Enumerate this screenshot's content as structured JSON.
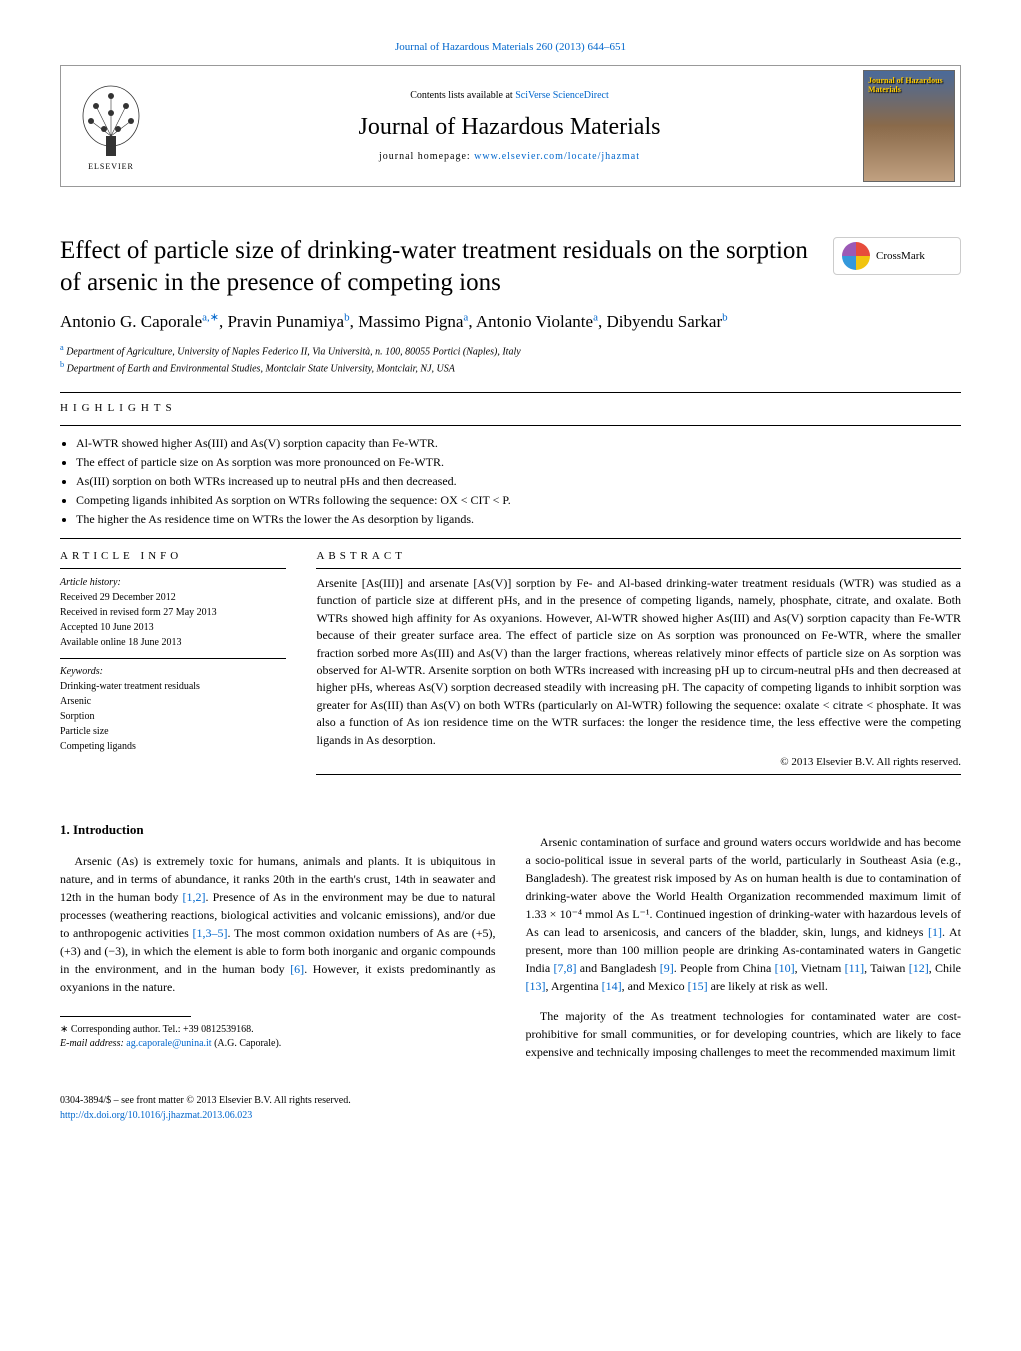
{
  "journal_ref": "Journal of Hazardous Materials 260 (2013) 644–651",
  "header": {
    "contents_prefix": "Contents lists available at ",
    "contents_link": "SciVerse ScienceDirect",
    "journal_name": "Journal of Hazardous Materials",
    "homepage_prefix": "journal homepage: ",
    "homepage_link": "www.elsevier.com/locate/jhazmat",
    "publisher": "ELSEVIER",
    "cover_text": "Journal of Hazardous Materials"
  },
  "crossmark": "CrossMark",
  "title": "Effect of particle size of drinking-water treatment residuals on the sorption of arsenic in the presence of competing ions",
  "authors_html": "Antonio G. Caporale<sup>a,∗</sup>, Pravin Punamiya<sup>b</sup>, Massimo Pigna<sup>a</sup>, Antonio Violante<sup>a</sup>, Dibyendu Sarkar<sup>b</sup>",
  "affiliations": [
    {
      "sup": "a",
      "text": "Department of Agriculture, University of Naples Federico II, Via Università, n. 100, 80055 Portici (Naples), Italy"
    },
    {
      "sup": "b",
      "text": "Department of Earth and Environmental Studies, Montclair State University, Montclair, NJ, USA"
    }
  ],
  "highlights_heading": "HIGHLIGHTS",
  "highlights": [
    "Al-WTR showed higher As(III) and As(V) sorption capacity than Fe-WTR.",
    "The effect of particle size on As sorption was more pronounced on Fe-WTR.",
    "As(III) sorption on both WTRs increased up to neutral pHs and then decreased.",
    "Competing ligands inhibited As sorption on WTRs following the sequence: OX < CIT < P.",
    "The higher the As residence time on WTRs the lower the As desorption by ligands."
  ],
  "article_info": {
    "heading": "ARTICLE INFO",
    "history_label": "Article history:",
    "dates": [
      "Received 29 December 2012",
      "Received in revised form 27 May 2013",
      "Accepted 10 June 2013",
      "Available online 18 June 2013"
    ],
    "keywords_label": "Keywords:",
    "keywords": [
      "Drinking-water treatment residuals",
      "Arsenic",
      "Sorption",
      "Particle size",
      "Competing ligands"
    ]
  },
  "abstract": {
    "heading": "ABSTRACT",
    "text": "Arsenite [As(III)] and arsenate [As(V)] sorption by Fe- and Al-based drinking-water treatment residuals (WTR) was studied as a function of particle size at different pHs, and in the presence of competing ligands, namely, phosphate, citrate, and oxalate. Both WTRs showed high affinity for As oxyanions. However, Al-WTR showed higher As(III) and As(V) sorption capacity than Fe-WTR because of their greater surface area. The effect of particle size on As sorption was pronounced on Fe-WTR, where the smaller fraction sorbed more As(III) and As(V) than the larger fractions, whereas relatively minor effects of particle size on As sorption was observed for Al-WTR. Arsenite sorption on both WTRs increased with increasing pH up to circum-neutral pHs and then decreased at higher pHs, whereas As(V) sorption decreased steadily with increasing pH. The capacity of competing ligands to inhibit sorption was greater for As(III) than As(V) on both WTRs (particularly on Al-WTR) following the sequence: oxalate < citrate < phosphate. It was also a function of As ion residence time on the WTR surfaces: the longer the residence time, the less effective were the competing ligands in As desorption.",
    "copyright": "© 2013 Elsevier B.V. All rights reserved."
  },
  "intro": {
    "heading": "1.  Introduction",
    "p1_pre": "Arsenic (As) is extremely toxic for humans, animals and plants. It is ubiquitous in nature, and in terms of abundance, it ranks 20th in the earth's crust, 14th in seawater and 12th in the human body ",
    "p1_ref1": "[1,2]",
    "p1_mid1": ". Presence of As in the environment may be due to natural processes (weathering reactions, biological activities and volcanic emissions), and/or due to anthropogenic activities ",
    "p1_ref2": "[1,3–5]",
    "p1_mid2": ". The most common oxidation numbers of As are (+5), (+3) and (−3), in which the element is able to form both inorganic and organic compounds in the environment, and in the human body ",
    "p1_ref3": "[6]",
    "p1_end": ". However, it exists predominantly as oxyanions in the nature.",
    "p2_pre": "Arsenic contamination of surface and ground waters occurs worldwide and has become a socio-political issue in several parts of the world, particularly in Southeast Asia (e.g., Bangladesh). The greatest risk imposed by As on human health is due to contamination of drinking-water above the World Health Organization recommended maximum limit of 1.33 × 10⁻⁴ mmol As L⁻¹. Continued ingestion of drinking-water with hazardous levels of As can lead to arsenicosis, and cancers of the bladder, skin, lungs, and kidneys ",
    "p2_ref1": "[1]",
    "p2_mid1": ". At present, more than 100 million people are drinking As-contaminated waters in Gangetic India ",
    "p2_ref2": "[7,8]",
    "p2_mid2": " and Bangladesh ",
    "p2_ref3": "[9]",
    "p2_mid3": ". People from China ",
    "p2_ref4": "[10]",
    "p2_mid4": ", Vietnam ",
    "p2_ref5": "[11]",
    "p2_mid5": ", Taiwan ",
    "p2_ref6": "[12]",
    "p2_mid6": ", Chile ",
    "p2_ref7": "[13]",
    "p2_mid7": ", Argentina ",
    "p2_ref8": "[14]",
    "p2_mid8": ", and Mexico ",
    "p2_ref9": "[15]",
    "p2_end": " are likely at risk as well.",
    "p3": "The majority of the As treatment technologies for contaminated water are cost-prohibitive for small communities, or for developing countries, which are likely to face expensive and technically imposing challenges to meet the recommended maximum limit"
  },
  "footnote": {
    "corr": "∗ Corresponding author. Tel.: +39 0812539168.",
    "email_label": "E-mail address: ",
    "email": "ag.caporale@unina.it",
    "email_suffix": " (A.G. Caporale)."
  },
  "footer": {
    "line1": "0304-3894/$ – see front matter © 2013 Elsevier B.V. All rights reserved.",
    "doi": "http://dx.doi.org/10.1016/j.jhazmat.2013.06.023"
  },
  "colors": {
    "link": "#0066cc",
    "text": "#000000",
    "border": "#999999"
  }
}
